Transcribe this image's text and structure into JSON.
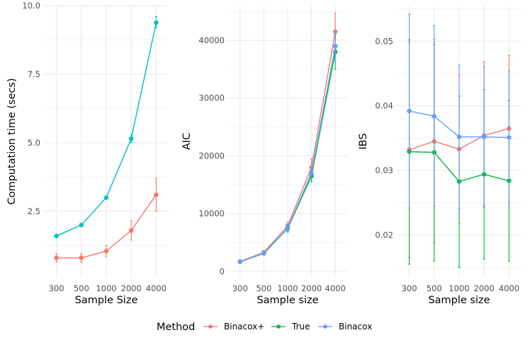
{
  "legend": {
    "title": "Method",
    "items": [
      {
        "label": "Binacox+",
        "color": "#F8766D"
      },
      {
        "label": "True",
        "color": "#00BA38"
      },
      {
        "label": "Binacox",
        "color": "#619CFF"
      }
    ]
  },
  "chart_data": [
    {
      "type": "line",
      "xlabel": "Sample Size",
      "ylabel": "Computation time (secs)",
      "categories": [
        "300",
        "500",
        "1000",
        "2000",
        "4000"
      ],
      "ylim": [
        0.1,
        10.0
      ],
      "yticks": [
        2.5,
        5.0,
        7.5,
        10.0
      ],
      "ytick_labels": [
        "2.5",
        "5.0",
        "7.5",
        "10.0"
      ],
      "series": [
        {
          "name": "Binacox+",
          "color": "#F8766D",
          "values": [
            0.8,
            0.8,
            1.05,
            1.8,
            3.1
          ],
          "lower": [
            0.65,
            0.65,
            0.85,
            1.45,
            2.5
          ],
          "upper": [
            0.95,
            0.95,
            1.25,
            2.15,
            3.7
          ]
        },
        {
          "name": "Binacox",
          "color": "#00BFC4",
          "values": [
            1.6,
            2.0,
            3.0,
            5.15,
            9.38
          ],
          "lower": [
            1.6,
            2.0,
            3.0,
            5.0,
            9.2
          ],
          "upper": [
            1.6,
            2.0,
            3.0,
            5.3,
            9.6
          ]
        }
      ]
    },
    {
      "type": "line",
      "xlabel": "Sample size",
      "ylabel": "AIC",
      "categories": [
        "300",
        "500",
        "1000",
        "2000",
        "4000"
      ],
      "ylim": [
        -1000,
        46000
      ],
      "yticks": [
        0,
        10000,
        20000,
        30000,
        40000
      ],
      "ytick_labels": [
        "0",
        "10000",
        "20000",
        "30000",
        "40000"
      ],
      "series": [
        {
          "name": "Binacox+",
          "color": "#F8766D",
          "values": [
            1700,
            3300,
            7900,
            18000,
            41500
          ],
          "lower": [
            1500,
            3000,
            7300,
            16500,
            38500
          ],
          "upper": [
            1900,
            3600,
            8500,
            19500,
            44700
          ]
        },
        {
          "name": "True",
          "color": "#00BA38",
          "values": [
            1650,
            3100,
            7400,
            16500,
            38000
          ],
          "lower": [
            1450,
            2800,
            6800,
            15500,
            35000
          ],
          "upper": [
            1850,
            3400,
            8000,
            17500,
            41000
          ]
        },
        {
          "name": "Binacox",
          "color": "#619CFF",
          "values": [
            1650,
            3150,
            7500,
            17000,
            39000
          ],
          "lower": [
            1450,
            2850,
            6900,
            16000,
            36500
          ],
          "upper": [
            1850,
            3450,
            8100,
            18000,
            41500
          ]
        }
      ]
    },
    {
      "type": "line",
      "xlabel": "Sample size",
      "ylabel": "IBS",
      "categories": [
        "300",
        "500",
        "1000",
        "2000",
        "4000"
      ],
      "ylim": [
        0.0135,
        0.0555
      ],
      "yticks": [
        0.02,
        0.03,
        0.04,
        0.05
      ],
      "ytick_labels": [
        "0.02",
        "0.03",
        "0.04",
        "0.05"
      ],
      "series": [
        {
          "name": "Binacox+",
          "color": "#F8766D",
          "values": [
            0.0332,
            0.0345,
            0.0333,
            0.0354,
            0.0365
          ],
          "lower": [
            0.0165,
            0.0188,
            0.0218,
            0.0243,
            0.0252
          ],
          "upper": [
            0.0498,
            0.0503,
            0.0447,
            0.0468,
            0.0478
          ]
        },
        {
          "name": "True",
          "color": "#00BA38",
          "values": [
            0.0329,
            0.0328,
            0.0283,
            0.0294,
            0.0284
          ],
          "lower": [
            0.0155,
            0.016,
            0.015,
            0.0163,
            0.016
          ],
          "upper": [
            0.0502,
            0.0495,
            0.0415,
            0.0425,
            0.0408
          ]
        },
        {
          "name": "Binacox",
          "color": "#619CFF",
          "values": [
            0.0392,
            0.0384,
            0.0352,
            0.0352,
            0.0351
          ],
          "lower": [
            0.0242,
            0.0245,
            0.0241,
            0.0246,
            0.0248
          ],
          "upper": [
            0.0542,
            0.0524,
            0.0463,
            0.046,
            0.0454
          ]
        }
      ]
    }
  ]
}
